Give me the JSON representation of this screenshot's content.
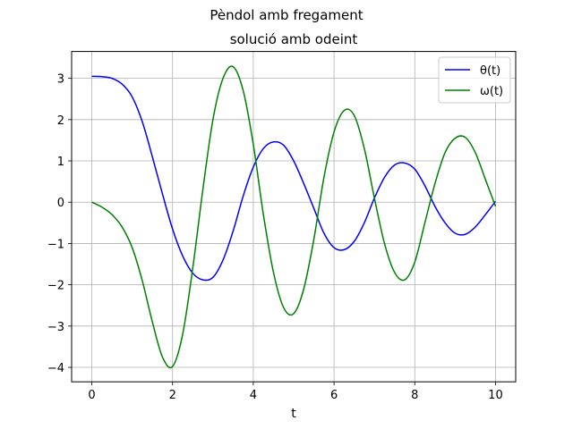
{
  "chart_data": {
    "type": "line",
    "suptitle": "Pèndol amb fregament",
    "title": "solució amb odeint",
    "xlabel": "t",
    "ylabel": "",
    "xlim": [
      -0.5,
      10.5
    ],
    "ylim": [
      -4.35,
      3.65
    ],
    "xticks": [
      0,
      2,
      4,
      6,
      8,
      10
    ],
    "xtick_labels": [
      "0",
      "2",
      "4",
      "6",
      "8",
      "10"
    ],
    "yticks": [
      3,
      2,
      1,
      0,
      -1,
      -2,
      -3,
      -4
    ],
    "ytick_labels": [
      "3",
      "2",
      "1",
      "0",
      "−1",
      "−2",
      "−3",
      "−4"
    ],
    "grid": true,
    "legend_position": "top-right",
    "x": [
      0,
      0.25,
      0.5,
      0.75,
      1,
      1.25,
      1.5,
      1.75,
      2,
      2.25,
      2.5,
      2.75,
      3,
      3.25,
      3.5,
      3.75,
      4,
      4.25,
      4.5,
      4.75,
      5,
      5.25,
      5.5,
      5.75,
      6,
      6.25,
      6.5,
      6.75,
      7,
      7.25,
      7.5,
      7.75,
      8,
      8.25,
      8.5,
      8.75,
      9,
      9.25,
      9.5,
      9.75,
      10
    ],
    "series": [
      {
        "name": "θ(t)",
        "color": "#0000ff",
        "values": [
          3.05,
          3.04,
          3.0,
          2.86,
          2.55,
          1.95,
          1.1,
          0.2,
          -0.65,
          -1.3,
          -1.72,
          -1.88,
          -1.82,
          -1.4,
          -0.7,
          0.15,
          0.85,
          1.3,
          1.46,
          1.38,
          1.0,
          0.45,
          -0.15,
          -0.75,
          -1.1,
          -1.15,
          -0.95,
          -0.5,
          0.1,
          0.6,
          0.9,
          0.95,
          0.8,
          0.4,
          -0.1,
          -0.5,
          -0.75,
          -0.78,
          -0.6,
          -0.3,
          0.02
        ]
      },
      {
        "name": "ω(t)",
        "color": "#008000",
        "values": [
          0.0,
          -0.12,
          -0.3,
          -0.6,
          -1.1,
          -1.9,
          -2.9,
          -3.75,
          -3.98,
          -3.2,
          -1.6,
          0.3,
          2.0,
          3.0,
          3.28,
          2.7,
          1.4,
          -0.3,
          -1.7,
          -2.55,
          -2.7,
          -2.1,
          -0.9,
          0.6,
          1.7,
          2.22,
          2.1,
          1.3,
          0.1,
          -1.0,
          -1.7,
          -1.88,
          -1.45,
          -0.5,
          0.45,
          1.2,
          1.55,
          1.57,
          1.2,
          0.55,
          -0.1
        ]
      }
    ]
  }
}
